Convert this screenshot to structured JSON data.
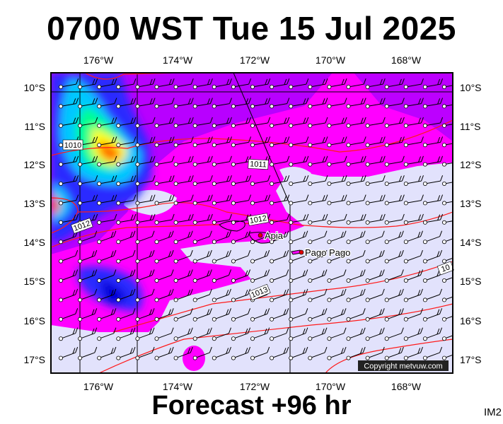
{
  "header": {
    "title": "0700 WST Tue 15 Jul 2025"
  },
  "footer": {
    "forecast": "Forecast +96 hr",
    "code": "IM2"
  },
  "map": {
    "lon_labels": [
      "176°W",
      "174°W",
      "172°W",
      "170°W",
      "168°W"
    ],
    "lat_labels": [
      "10°S",
      "11°S",
      "12°S",
      "13°S",
      "14°S",
      "15°S",
      "16°S",
      "17°S"
    ],
    "places": [
      {
        "name": "Apia"
      },
      {
        "name": "Pago Pago"
      }
    ],
    "isobar_labels": [
      "1010",
      "1011",
      "1012",
      "1012",
      "1013",
      "10"
    ],
    "copyright": "Copyright metvuw.com"
  }
}
